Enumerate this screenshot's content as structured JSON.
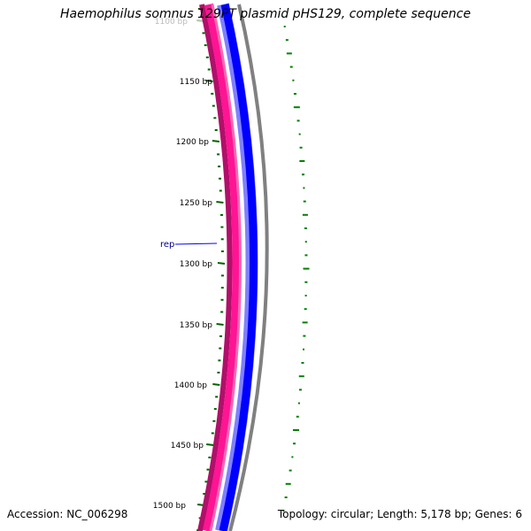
{
  "title": "Haemophilus somnus 129PT plasmid pHS129, complete sequence",
  "accession": "Accession: NC_006298",
  "topology": "Topology: circular; Length: 5,178 bp; Genes: 6",
  "ticks": [
    {
      "label": "1100 bp",
      "faded": true
    },
    {
      "label": "1150 bp"
    },
    {
      "label": "1200 bp"
    },
    {
      "label": "1250 bp"
    },
    {
      "label": "1300 bp"
    },
    {
      "label": "1350 bp"
    },
    {
      "label": "1400 bp"
    },
    {
      "label": "1450 bp"
    },
    {
      "label": "1500 bp"
    }
  ],
  "feature_label": "rep",
  "colors": {
    "pink": "#ff1493",
    "pink_dark": "#b0106a",
    "blue": "#0000ff",
    "blue_light": "#8080ff",
    "gray": "#808080",
    "tick_green": "#006400",
    "gc_green": "#008000",
    "label_blue": "#00008b"
  }
}
